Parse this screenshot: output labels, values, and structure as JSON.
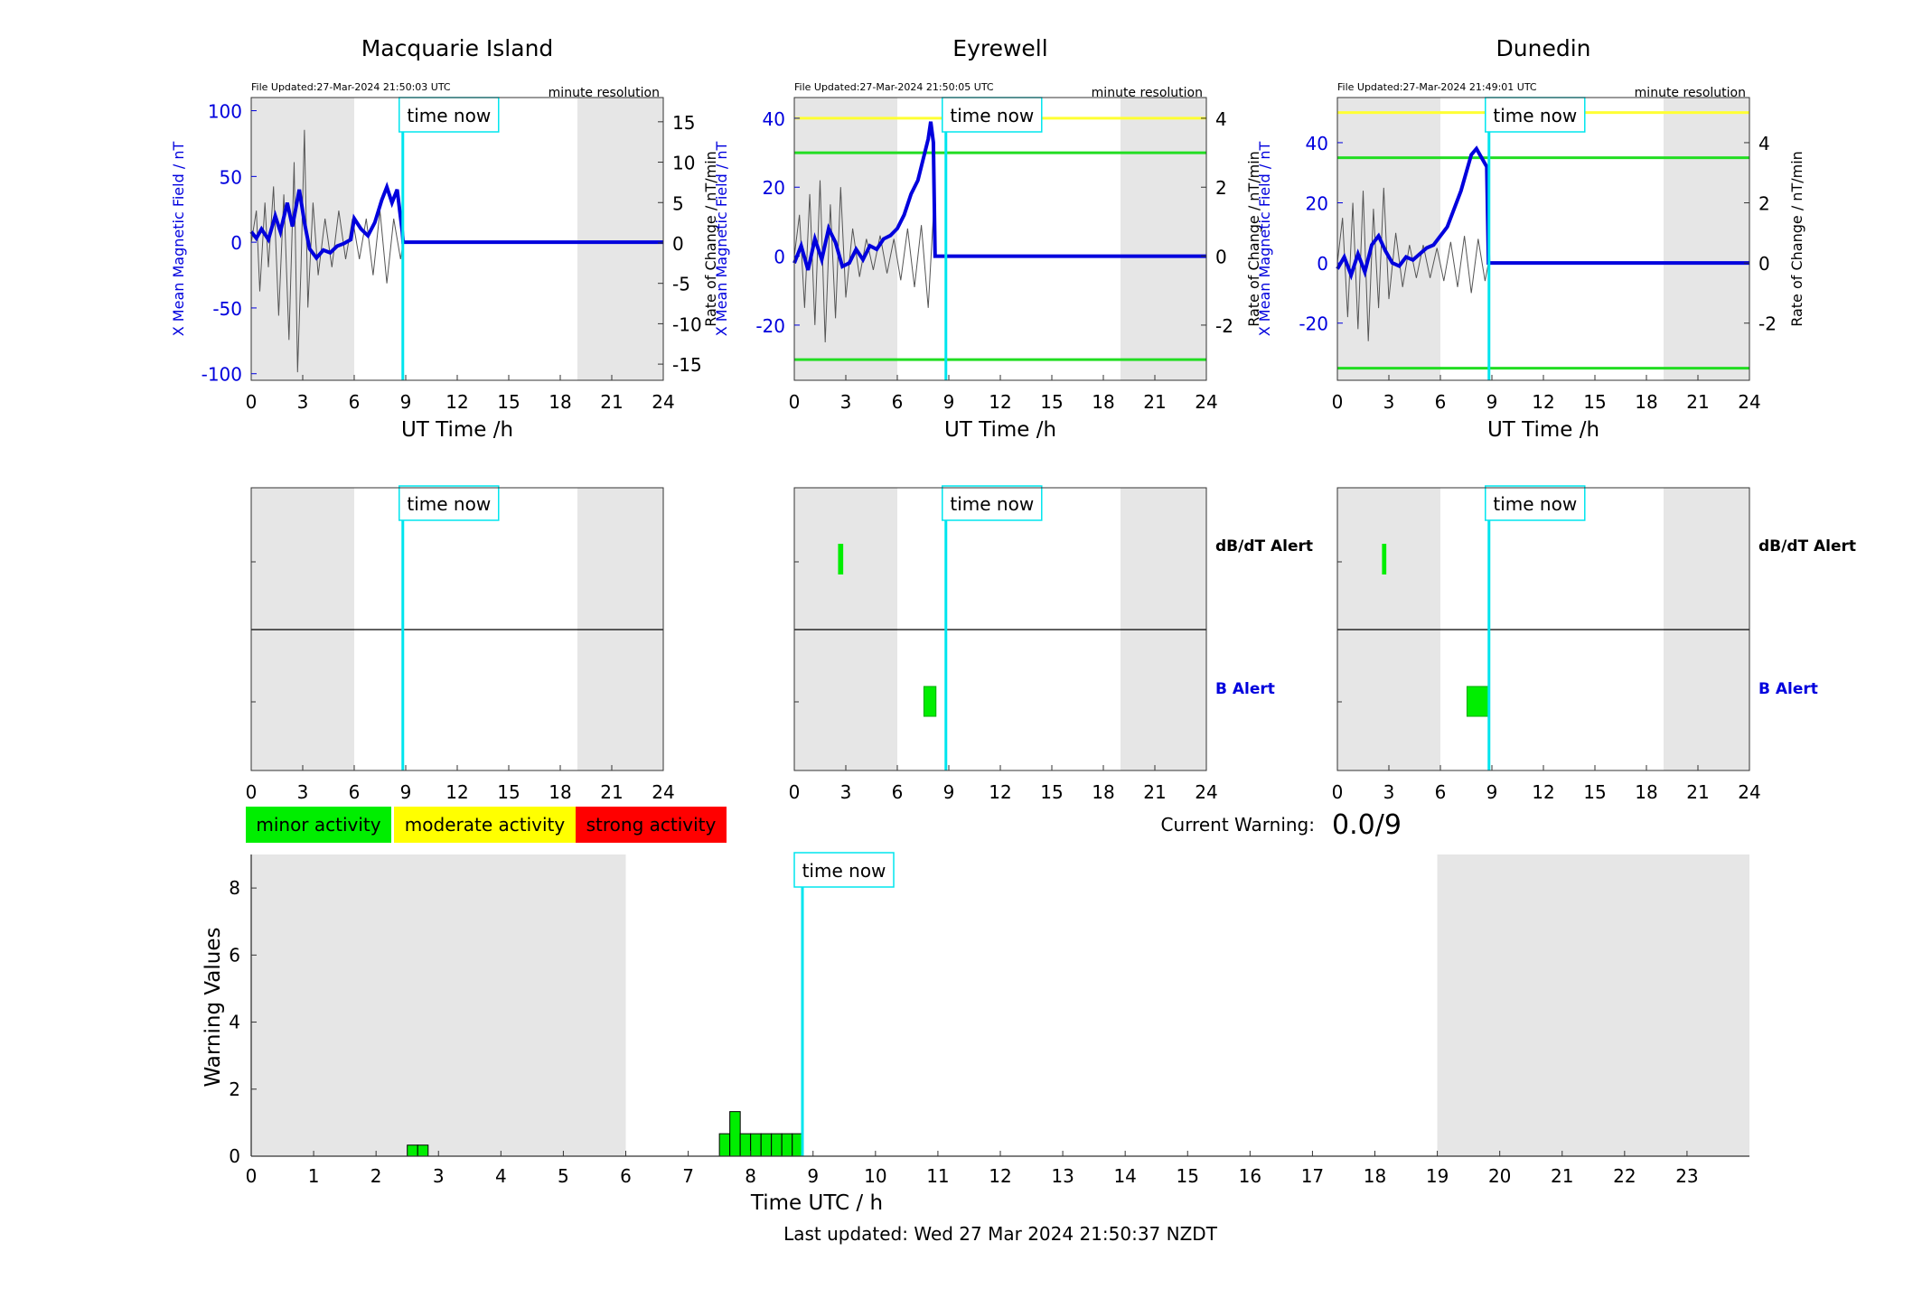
{
  "stations": [
    {
      "name": "Macquarie Island",
      "file_updated": "File Updated:27-Mar-2024 21:50:03 UTC",
      "resolution": "minute resolution",
      "time_now_label": "time now",
      "left_ylabel": "X Mean Magnetic Field / nT",
      "right_ylabel": "Rate of Change / nT/min",
      "xlabel": "UT Time /h",
      "ylim": [
        -105,
        110
      ],
      "yticks": [
        -100,
        -50,
        0,
        50,
        100
      ],
      "rlim": [
        -17,
        18
      ],
      "rticks": [
        -15,
        -10,
        -5,
        0,
        5,
        10,
        15
      ],
      "threshold_lines": [],
      "field_trace": [
        [
          0,
          8
        ],
        [
          0.3,
          3
        ],
        [
          0.6,
          10
        ],
        [
          1,
          2
        ],
        [
          1.4,
          20
        ],
        [
          1.7,
          8
        ],
        [
          2.1,
          30
        ],
        [
          2.4,
          12
        ],
        [
          2.8,
          40
        ],
        [
          3.1,
          15
        ],
        [
          3.4,
          -5
        ],
        [
          3.8,
          -12
        ],
        [
          4.2,
          -6
        ],
        [
          4.6,
          -8
        ],
        [
          5,
          -3
        ],
        [
          5.4,
          -1
        ],
        [
          5.8,
          2
        ],
        [
          6,
          18
        ],
        [
          6.4,
          10
        ],
        [
          6.8,
          5
        ],
        [
          7.2,
          15
        ],
        [
          7.6,
          32
        ],
        [
          7.9,
          42
        ],
        [
          8.2,
          30
        ],
        [
          8.5,
          40
        ],
        [
          8.8,
          8
        ],
        [
          8.85,
          0
        ],
        [
          24,
          0
        ]
      ],
      "rate_trace": [
        [
          0,
          0
        ],
        [
          0.3,
          4
        ],
        [
          0.5,
          -6
        ],
        [
          0.8,
          5
        ],
        [
          1,
          -3
        ],
        [
          1.3,
          7
        ],
        [
          1.6,
          -9
        ],
        [
          1.9,
          6
        ],
        [
          2.2,
          -12
        ],
        [
          2.5,
          10
        ],
        [
          2.7,
          -16
        ],
        [
          2.9,
          -3
        ],
        [
          3.1,
          14
        ],
        [
          3.3,
          -8
        ],
        [
          3.6,
          5
        ],
        [
          3.9,
          -4
        ],
        [
          4.3,
          3
        ],
        [
          4.7,
          -3
        ],
        [
          5.1,
          4
        ],
        [
          5.5,
          -2
        ],
        [
          5.9,
          3
        ],
        [
          6.3,
          -2
        ],
        [
          6.7,
          3
        ],
        [
          7.1,
          -4
        ],
        [
          7.5,
          4
        ],
        [
          7.9,
          -5
        ],
        [
          8.3,
          3
        ],
        [
          8.7,
          -2
        ],
        [
          8.85,
          0
        ]
      ],
      "alert_db": [],
      "alert_b": []
    },
    {
      "name": "Eyrewell",
      "file_updated": "File Updated:27-Mar-2024 21:50:05 UTC",
      "resolution": "minute resolution",
      "time_now_label": "time now",
      "left_ylabel": "X Mean Magnetic Field / nT",
      "right_ylabel": "Rate of Change / nT/min",
      "xlabel": "UT Time /h",
      "ylim": [
        -36,
        46
      ],
      "yticks": [
        -20,
        0,
        20,
        40
      ],
      "rlim": [
        -3.6,
        4.6
      ],
      "rticks": [
        -2,
        0,
        2,
        4
      ],
      "threshold_lines": [
        {
          "value": 40,
          "color": "#ffff33"
        },
        {
          "value": 30,
          "color": "#22dd22"
        },
        {
          "value": -30,
          "color": "#22dd22"
        }
      ],
      "field_trace": [
        [
          0,
          -2
        ],
        [
          0.4,
          3
        ],
        [
          0.8,
          -4
        ],
        [
          1.2,
          5
        ],
        [
          1.6,
          -1
        ],
        [
          2,
          8
        ],
        [
          2.4,
          4
        ],
        [
          2.8,
          -3
        ],
        [
          3.2,
          -2
        ],
        [
          3.6,
          2
        ],
        [
          4,
          -1
        ],
        [
          4.4,
          3
        ],
        [
          4.8,
          2
        ],
        [
          5.2,
          5
        ],
        [
          5.6,
          6
        ],
        [
          6,
          8
        ],
        [
          6.4,
          12
        ],
        [
          6.8,
          18
        ],
        [
          7.2,
          22
        ],
        [
          7.5,
          28
        ],
        [
          7.8,
          34
        ],
        [
          7.95,
          39
        ],
        [
          8.1,
          33
        ],
        [
          8.2,
          0
        ],
        [
          24,
          0
        ]
      ],
      "rate_trace": [
        [
          0,
          0
        ],
        [
          0.3,
          1.2
        ],
        [
          0.6,
          -1.5
        ],
        [
          0.9,
          1.8
        ],
        [
          1.2,
          -2
        ],
        [
          1.5,
          2.2
        ],
        [
          1.8,
          -2.5
        ],
        [
          2.1,
          1.5
        ],
        [
          2.4,
          -1.8
        ],
        [
          2.7,
          2
        ],
        [
          3,
          -1.2
        ],
        [
          3.4,
          0.8
        ],
        [
          3.8,
          -0.6
        ],
        [
          4.2,
          0.5
        ],
        [
          4.6,
          -0.4
        ],
        [
          5,
          0.6
        ],
        [
          5.4,
          -0.5
        ],
        [
          5.8,
          0.5
        ],
        [
          6.2,
          -0.7
        ],
        [
          6.6,
          0.8
        ],
        [
          7,
          -0.9
        ],
        [
          7.4,
          0.9
        ],
        [
          7.8,
          -1.5
        ],
        [
          8.1,
          1.2
        ],
        [
          8.2,
          0
        ]
      ],
      "alert_db": [
        [
          2.55,
          2.85
        ]
      ],
      "alert_b": [
        [
          7.55,
          8.25
        ]
      ]
    },
    {
      "name": "Dunedin",
      "file_updated": "File Updated:27-Mar-2024 21:49:01 UTC",
      "resolution": "minute resolution",
      "time_now_label": "time now",
      "left_ylabel": "X Mean Magnetic Field / nT",
      "right_ylabel": "Rate of Change / nT/min",
      "xlabel": "UT Time /h",
      "ylim": [
        -39,
        55
      ],
      "yticks": [
        -20,
        0,
        20,
        40
      ],
      "rlim": [
        -3.9,
        5.5
      ],
      "rticks": [
        -2,
        0,
        2,
        4
      ],
      "threshold_lines": [
        {
          "value": 50,
          "color": "#ffff33"
        },
        {
          "value": 35,
          "color": "#22dd22"
        },
        {
          "value": -35,
          "color": "#22dd22"
        }
      ],
      "field_trace": [
        [
          0,
          -2
        ],
        [
          0.4,
          2
        ],
        [
          0.8,
          -4
        ],
        [
          1.2,
          3
        ],
        [
          1.6,
          -3
        ],
        [
          2,
          6
        ],
        [
          2.4,
          9
        ],
        [
          2.8,
          4
        ],
        [
          3.2,
          0
        ],
        [
          3.6,
          -1
        ],
        [
          4,
          2
        ],
        [
          4.4,
          1
        ],
        [
          4.8,
          3
        ],
        [
          5.2,
          5
        ],
        [
          5.6,
          6
        ],
        [
          6,
          9
        ],
        [
          6.4,
          12
        ],
        [
          6.8,
          18
        ],
        [
          7.2,
          24
        ],
        [
          7.5,
          30
        ],
        [
          7.8,
          36
        ],
        [
          8.1,
          38
        ],
        [
          8.4,
          35
        ],
        [
          8.7,
          32
        ],
        [
          8.8,
          0
        ],
        [
          24,
          0
        ]
      ],
      "rate_trace": [
        [
          0,
          0
        ],
        [
          0.3,
          1.5
        ],
        [
          0.6,
          -1.8
        ],
        [
          0.9,
          2
        ],
        [
          1.2,
          -2.2
        ],
        [
          1.5,
          2.4
        ],
        [
          1.8,
          -2.6
        ],
        [
          2.1,
          1.8
        ],
        [
          2.4,
          -1.5
        ],
        [
          2.7,
          2.5
        ],
        [
          3,
          -1.2
        ],
        [
          3.4,
          1
        ],
        [
          3.8,
          -0.8
        ],
        [
          4.2,
          0.6
        ],
        [
          4.6,
          -0.5
        ],
        [
          5,
          0.6
        ],
        [
          5.4,
          -0.5
        ],
        [
          5.8,
          0.5
        ],
        [
          6.2,
          -0.6
        ],
        [
          6.6,
          0.7
        ],
        [
          7,
          -0.8
        ],
        [
          7.4,
          0.9
        ],
        [
          7.8,
          -1
        ],
        [
          8.2,
          0.8
        ],
        [
          8.6,
          -0.6
        ],
        [
          8.8,
          0
        ]
      ],
      "alert_db": [
        [
          2.6,
          2.85
        ]
      ],
      "alert_b": [
        [
          7.55,
          8.8
        ]
      ]
    }
  ],
  "alerts": {
    "db_label": "dB/dT Alert",
    "b_label": "B Alert"
  },
  "legend": {
    "minor": "minor activity",
    "moderate": "moderate activity",
    "strong": "strong activity",
    "colors": {
      "minor": "#00ee00",
      "moderate": "#ffff00",
      "strong": "#ff0000"
    }
  },
  "current_warning": {
    "label": "Current Warning:",
    "value": "0.0/9"
  },
  "time_now_hours": 8.83,
  "night_shading": [
    [
      0,
      6
    ],
    [
      19,
      24
    ]
  ],
  "chart_data": {
    "type": "bar",
    "xlabel": "Time UTC / h",
    "ylabel": "Warning Values",
    "xlim": [
      0,
      24
    ],
    "ylim": [
      0,
      9
    ],
    "xticks": [
      0,
      1,
      2,
      3,
      4,
      5,
      6,
      7,
      8,
      9,
      10,
      11,
      12,
      13,
      14,
      15,
      16,
      17,
      18,
      19,
      20,
      21,
      22,
      23
    ],
    "yticks": [
      0,
      2,
      4,
      6,
      8
    ],
    "bar_width_h": 0.1667,
    "bars": [
      {
        "x": 2.5,
        "value": 0.33
      },
      {
        "x": 2.667,
        "value": 0.33
      },
      {
        "x": 7.5,
        "value": 0.67
      },
      {
        "x": 7.667,
        "value": 1.33
      },
      {
        "x": 7.833,
        "value": 0.67
      },
      {
        "x": 8.0,
        "value": 0.67
      },
      {
        "x": 8.167,
        "value": 0.67
      },
      {
        "x": 8.333,
        "value": 0.67
      },
      {
        "x": 8.5,
        "value": 0.67
      },
      {
        "x": 8.667,
        "value": 0.67
      }
    ],
    "time_now_label": "time now"
  },
  "footer": "Last updated: Wed 27 Mar 2024 21:50:37 NZDT"
}
